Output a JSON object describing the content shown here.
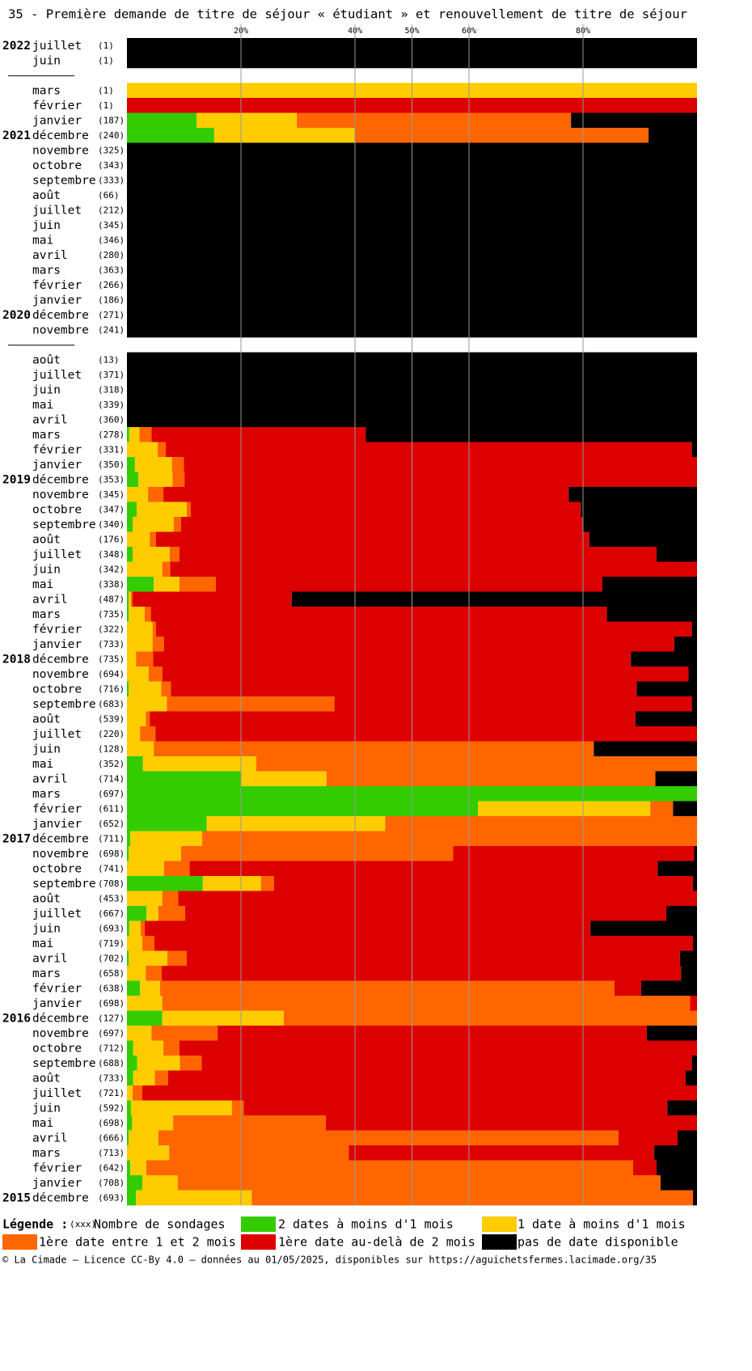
{
  "chart_data": {
    "type": "stacked-bar-horizontal",
    "title": "35 - Première demande de titre de séjour « étudiant » et renouvellement de titre de séjour",
    "xlim": [
      0,
      100
    ],
    "xticks": [
      {
        "value": 20,
        "label": "20%"
      },
      {
        "value": 40,
        "label": "40%"
      },
      {
        "value": 50,
        "label": "50%"
      },
      {
        "value": 60,
        "label": "60%"
      },
      {
        "value": 80,
        "label": "80%"
      }
    ],
    "grid": true,
    "years": [
      "2022",
      null,
      null,
      null,
      null,
      null,
      "2021",
      null,
      null,
      null,
      null,
      null,
      null,
      null,
      null,
      null,
      null,
      null,
      "2020",
      null,
      null,
      null,
      null,
      null,
      null,
      null,
      null,
      null,
      null,
      "2019",
      null,
      null,
      null,
      null,
      null,
      null,
      null,
      null,
      null,
      null,
      null,
      "2018",
      null,
      null,
      null,
      null,
      null,
      null,
      null,
      null,
      null,
      null,
      null,
      "2017",
      null,
      null,
      null,
      null,
      null,
      null,
      null,
      null,
      null,
      null,
      null,
      "2016",
      null,
      null,
      null,
      null,
      null,
      null,
      null,
      null,
      null,
      null,
      null,
      "2015"
    ],
    "categories": [
      "juillet",
      "juin",
      null,
      "mars",
      "février",
      "janvier",
      "décembre",
      "novembre",
      "octobre",
      "septembre",
      "août",
      "juillet",
      "juin",
      "mai",
      "avril",
      "mars",
      "février",
      "janvier",
      "décembre",
      "novembre",
      null,
      "août",
      "juillet",
      "juin",
      "mai",
      "avril",
      "mars",
      "février",
      "janvier",
      "décembre",
      "novembre",
      "octobre",
      "septembre",
      "août",
      "juillet",
      "juin",
      "mai",
      "avril",
      "mars",
      "février",
      "janvier",
      "décembre",
      "novembre",
      "octobre",
      "septembre",
      "août",
      "juillet",
      "juin",
      "mai",
      "avril",
      "mars",
      "février",
      "janvier",
      "décembre",
      "novembre",
      "octobre",
      "septembre",
      "août",
      "juillet",
      "juin",
      "mai",
      "avril",
      "mars",
      "février",
      "janvier",
      "décembre",
      "novembre",
      "octobre",
      "septembre",
      "août",
      "juillet",
      "juin",
      "mai",
      "avril",
      "mars",
      "février",
      "janvier",
      "décembre"
    ],
    "counts": [
      "(1)",
      "(1)",
      null,
      "(1)",
      "(1)",
      "(187)",
      "(240)",
      "(325)",
      "(343)",
      "(333)",
      "(66)",
      "(212)",
      "(345)",
      "(346)",
      "(280)",
      "(363)",
      "(266)",
      "(186)",
      "(271)",
      "(241)",
      null,
      "(13)",
      "(371)",
      "(318)",
      "(339)",
      "(360)",
      "(278)",
      "(331)",
      "(350)",
      "(353)",
      "(345)",
      "(347)",
      "(340)",
      "(176)",
      "(348)",
      "(342)",
      "(338)",
      "(487)",
      "(735)",
      "(322)",
      "(733)",
      "(735)",
      "(694)",
      "(716)",
      "(683)",
      "(539)",
      "(220)",
      "(128)",
      "(352)",
      "(714)",
      "(697)",
      "(611)",
      "(652)",
      "(711)",
      "(698)",
      "(741)",
      "(708)",
      "(453)",
      "(667)",
      "(693)",
      "(719)",
      "(702)",
      "(658)",
      "(638)",
      "(698)",
      "(127)",
      "(697)",
      "(712)",
      "(688)",
      "(733)",
      "(721)",
      "(592)",
      "(698)",
      "(666)",
      "(713)",
      "(642)",
      "(708)",
      "(693)"
    ],
    "series": [
      {
        "name": "2 dates à moins d'1 mois",
        "color": "#33cc00",
        "values": [
          0,
          0,
          null,
          0,
          0,
          12.2,
          15.3,
          0,
          0,
          0,
          0,
          0,
          0,
          0,
          0,
          0,
          0,
          0,
          0,
          0,
          null,
          0,
          0,
          0,
          0,
          0,
          0.4,
          0,
          1.4,
          2.0,
          0,
          1.7,
          1.0,
          0,
          1.0,
          0,
          4.7,
          0.3,
          0.3,
          0,
          0,
          0,
          0,
          0.3,
          0,
          0,
          0,
          0,
          2.8,
          20.0,
          100,
          61.6,
          14.0,
          0.6,
          0.3,
          0,
          13.3,
          0,
          3.4,
          0.4,
          0,
          0.3,
          0,
          2.3,
          0,
          6.2,
          0,
          1.1,
          1.8,
          1.1,
          0,
          0.7,
          0.9,
          0.3,
          0,
          0.6,
          2.7,
          1.6
        ]
      },
      {
        "name": "1 date à moins d'1 mois",
        "color": "#ffcc00",
        "values": [
          0,
          0,
          null,
          100,
          0,
          17.6,
          24.7,
          0,
          0,
          0,
          0,
          0,
          0,
          0,
          0,
          0,
          0,
          0,
          0,
          0,
          null,
          0,
          0,
          0,
          0,
          0,
          1.8,
          5.4,
          6.5,
          6.0,
          3.7,
          8.8,
          7.2,
          4.0,
          6.5,
          6.2,
          4.5,
          0.4,
          2.8,
          4.5,
          4.5,
          1.6,
          3.8,
          5.7,
          7.0,
          3.3,
          2.3,
          4.7,
          19.9,
          15.0,
          0,
          30.2,
          31.3,
          12.6,
          9.2,
          6.5,
          10.2,
          6.2,
          2.1,
          2.0,
          2.7,
          6.8,
          3.3,
          3.5,
          6.2,
          21.3,
          4.3,
          5.3,
          7.5,
          3.8,
          1.0,
          17.7,
          7.2,
          5.2,
          7.4,
          2.8,
          6.2,
          20.3
        ]
      },
      {
        "name": "1ère date entre 1 et 2 mois",
        "color": "#ff6600",
        "values": [
          0,
          0,
          null,
          0,
          0,
          48.1,
          51.5,
          0,
          0,
          0,
          0,
          0,
          0,
          0,
          0,
          0,
          0,
          0,
          0,
          0,
          null,
          0,
          0,
          0,
          0,
          0,
          2.1,
          1.4,
          2.1,
          2.1,
          2.7,
          0.7,
          1.3,
          1.1,
          1.7,
          1.4,
          6.4,
          0.3,
          1.1,
          0.6,
          2.0,
          3.0,
          2.4,
          1.7,
          29.4,
          0.7,
          2.7,
          77.2,
          77.3,
          57.7,
          0,
          4.0,
          54.7,
          86.8,
          47.7,
          4.5,
          2.3,
          2.8,
          4.7,
          0.7,
          2.1,
          3.4,
          2.8,
          79.7,
          92.6,
          72.5,
          11.6,
          2.8,
          3.8,
          2.3,
          1.7,
          2.1,
          26.8,
          80.7,
          31.5,
          85.4,
          84.7,
          77.4
        ]
      },
      {
        "name": "1ère date au-delà de 2 mois",
        "color": "#dd0000",
        "values": [
          0,
          0,
          null,
          0,
          100,
          0,
          0,
          0,
          0,
          0,
          0,
          0,
          0,
          0,
          0,
          0,
          0,
          0,
          0,
          0,
          null,
          0,
          0,
          0,
          0,
          0,
          37.6,
          92.3,
          90.0,
          89.9,
          71.1,
          68.4,
          70.4,
          76.0,
          83.7,
          92.4,
          67.8,
          27.9,
          80.0,
          94.0,
          89.5,
          83.8,
          92.3,
          81.7,
          62.7,
          85.2,
          95.0,
          0,
          0,
          0,
          0,
          0,
          0,
          0,
          42.3,
          82.1,
          73.5,
          91.0,
          84.4,
          78.2,
          94.5,
          86.5,
          91.1,
          4.7,
          1.2,
          0,
          75.3,
          90.8,
          86.0,
          90.8,
          97.3,
          74.3,
          65.1,
          10.4,
          53.6,
          4.1,
          0,
          0
        ]
      },
      {
        "name": "pas de date disponible",
        "color": "#000000",
        "values": [
          100,
          100,
          null,
          0,
          0,
          22.1,
          8.5,
          100,
          100,
          100,
          100,
          100,
          100,
          100,
          100,
          100,
          100,
          100,
          100,
          100,
          null,
          100,
          100,
          100,
          100,
          100,
          58.1,
          0.9,
          0,
          0,
          22.5,
          20.4,
          20.1,
          18.9,
          7.1,
          0,
          16.6,
          71.1,
          15.8,
          0.9,
          4.0,
          11.6,
          1.5,
          10.6,
          0.9,
          10.8,
          0,
          18.1,
          0,
          7.3,
          0,
          4.2,
          0,
          0,
          0.5,
          6.9,
          0.7,
          0,
          5.4,
          18.7,
          0.7,
          3.0,
          2.8,
          9.8,
          0,
          0,
          8.8,
          0,
          0.9,
          2.0,
          0,
          5.2,
          0,
          3.4,
          7.5,
          7.1,
          6.4,
          0.7
        ]
      }
    ],
    "legend_title": "Légende :",
    "count_key": "(xxx)",
    "count_label": "Nombre de sondages",
    "footer": "© La Cimade — Licence CC-By 4.0 — données au 01/05/2025, disponibles sur https://aguichetsfermes.lacimade.org/35"
  }
}
